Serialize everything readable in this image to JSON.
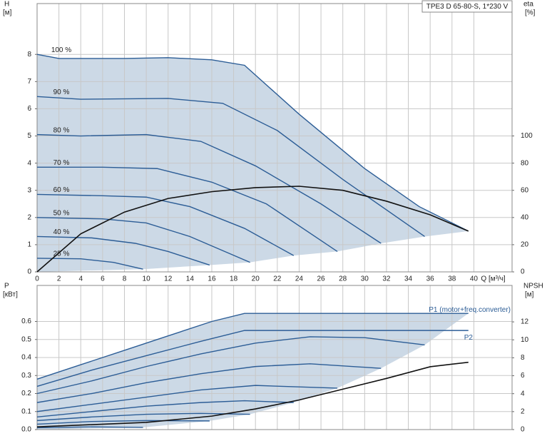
{
  "chart_data": [
    {
      "type": "line",
      "title": "TPE3 D 65-80-S, 1*230 V",
      "ylabel": "H",
      "yunit": "[м]",
      "y2label": "eta",
      "y2unit": "[%]",
      "xlabel": "Q [м³/ч]",
      "xlim": [
        0,
        43.5
      ],
      "xticks": [
        0,
        2,
        4,
        6,
        8,
        10,
        12,
        14,
        16,
        18,
        20,
        22,
        24,
        26,
        28,
        30,
        32,
        34,
        36,
        38,
        40
      ],
      "show_xtick_labels": true,
      "ylim": [
        0,
        9.87
      ],
      "yticks": [
        0,
        1,
        2,
        3,
        4,
        5,
        6,
        7,
        8
      ],
      "y2lim": [
        0,
        197.4
      ],
      "y2ticks": [
        0,
        20,
        40,
        60,
        80,
        100
      ],
      "grid": true,
      "fill": "#ccd9e6",
      "series": [
        {
          "name": "100 %",
          "color": "#2c5d96",
          "x": [
            0,
            2,
            8,
            12,
            16,
            19,
            24,
            30,
            35,
            39.5
          ],
          "values": [
            8.0,
            7.85,
            7.85,
            7.88,
            7.8,
            7.6,
            5.8,
            3.8,
            2.4,
            1.5
          ]
        },
        {
          "name": "90 %",
          "color": "#2c5d96",
          "x": [
            0,
            4,
            12,
            17,
            22,
            28,
            35.5
          ],
          "values": [
            6.45,
            6.35,
            6.38,
            6.2,
            5.2,
            3.4,
            1.3
          ]
        },
        {
          "name": "80 %",
          "color": "#2c5d96",
          "x": [
            0,
            4,
            10,
            15,
            20,
            26,
            31.5
          ],
          "values": [
            5.05,
            5.0,
            5.05,
            4.8,
            3.9,
            2.5,
            1.05
          ]
        },
        {
          "name": "70 %",
          "color": "#2c5d96",
          "x": [
            0,
            6,
            11,
            16,
            21,
            27.5
          ],
          "values": [
            3.85,
            3.85,
            3.8,
            3.3,
            2.5,
            0.75
          ]
        },
        {
          "name": "60 %",
          "color": "#2c5d96",
          "x": [
            0,
            6,
            10,
            14,
            19,
            23.5
          ],
          "values": [
            2.85,
            2.8,
            2.75,
            2.4,
            1.6,
            0.6
          ]
        },
        {
          "name": "50 %",
          "color": "#2c5d96",
          "x": [
            0,
            6,
            10,
            14,
            19.5
          ],
          "values": [
            2.0,
            1.95,
            1.8,
            1.3,
            0.35
          ]
        },
        {
          "name": "40 %",
          "color": "#2c5d96",
          "x": [
            0,
            5,
            9,
            12,
            15.8
          ],
          "values": [
            1.3,
            1.25,
            1.05,
            0.75,
            0.25
          ]
        },
        {
          "name": "25 %",
          "color": "#2c5d96",
          "x": [
            0,
            4,
            7,
            9.7
          ],
          "values": [
            0.5,
            0.48,
            0.35,
            0.1
          ]
        },
        {
          "color": "#111111",
          "axis": "y2",
          "x": [
            0,
            4,
            8,
            12,
            16,
            20,
            24,
            28,
            32,
            36,
            39.5
          ],
          "values": [
            0,
            28,
            44,
            54,
            59,
            62,
            63,
            60,
            52,
            42,
            30
          ]
        }
      ]
    },
    {
      "type": "line",
      "ylabel": "P",
      "yunit": "[кВт]",
      "y2label": "NPSH",
      "y2unit": "[м]",
      "xlim": [
        0,
        43.5
      ],
      "xticks": [
        0,
        2,
        4,
        6,
        8,
        10,
        12,
        14,
        16,
        18,
        20,
        22,
        24,
        26,
        28,
        30,
        32,
        34,
        36,
        38,
        40
      ],
      "show_xtick_labels": false,
      "ylim": [
        0,
        0.8
      ],
      "yticks": [
        {
          "value": 0,
          "label": "0.0"
        },
        0.1,
        0.2,
        0.3,
        0.4,
        0.5,
        0.6
      ],
      "y2lim": [
        0,
        16.06
      ],
      "y2ticks": [
        0,
        2,
        4,
        6,
        8,
        10,
        12
      ],
      "grid": true,
      "fill": "#ccd9e6",
      "series": [
        {
          "name": "P1 (motor+freq.converter)",
          "color": "#2c5d96",
          "x": [
            0,
            4,
            8,
            12,
            16,
            19,
            24,
            30,
            39.5
          ],
          "values": [
            0.28,
            0.36,
            0.44,
            0.52,
            0.6,
            0.645,
            0.645,
            0.645,
            0.645
          ]
        },
        {
          "color": "#2c5d96",
          "x": [
            0,
            5,
            10,
            15,
            20,
            25,
            30,
            35.5
          ],
          "values": [
            0.2,
            0.27,
            0.35,
            0.42,
            0.48,
            0.515,
            0.51,
            0.47
          ]
        },
        {
          "color": "#2c5d96",
          "x": [
            0,
            5,
            10,
            15,
            20,
            25,
            31.5
          ],
          "values": [
            0.15,
            0.2,
            0.26,
            0.31,
            0.35,
            0.365,
            0.34
          ]
        },
        {
          "color": "#2c5d96",
          "x": [
            0,
            5,
            10,
            15,
            20,
            27.5
          ],
          "values": [
            0.1,
            0.14,
            0.18,
            0.22,
            0.245,
            0.23
          ]
        },
        {
          "color": "#2c5d96",
          "x": [
            0,
            5,
            10,
            15,
            19,
            23.5
          ],
          "values": [
            0.07,
            0.1,
            0.13,
            0.15,
            0.16,
            0.15
          ]
        },
        {
          "color": "#2c5d96",
          "x": [
            0,
            5,
            10,
            15,
            19.5
          ],
          "values": [
            0.05,
            0.07,
            0.085,
            0.09,
            0.085
          ]
        },
        {
          "color": "#2c5d96",
          "x": [
            0,
            5,
            10,
            15.8
          ],
          "values": [
            0.03,
            0.045,
            0.05,
            0.048
          ]
        },
        {
          "color": "#2c5d96",
          "x": [
            0,
            5,
            9.7
          ],
          "values": [
            0.01,
            0.015,
            0.012
          ]
        },
        {
          "name": "P2",
          "color": "#2c5d96",
          "x": [
            0,
            5,
            10,
            15,
            19,
            30,
            39.5
          ],
          "values": [
            0.24,
            0.33,
            0.41,
            0.49,
            0.55,
            0.55,
            0.55
          ]
        },
        {
          "color": "#111111",
          "axis": "y2",
          "x": [
            0,
            10,
            16,
            20,
            24,
            28,
            32,
            36,
            39.5
          ],
          "values": [
            0.3,
            0.8,
            1.5,
            2.3,
            3.3,
            4.5,
            5.7,
            7.0,
            7.5
          ]
        }
      ]
    }
  ]
}
